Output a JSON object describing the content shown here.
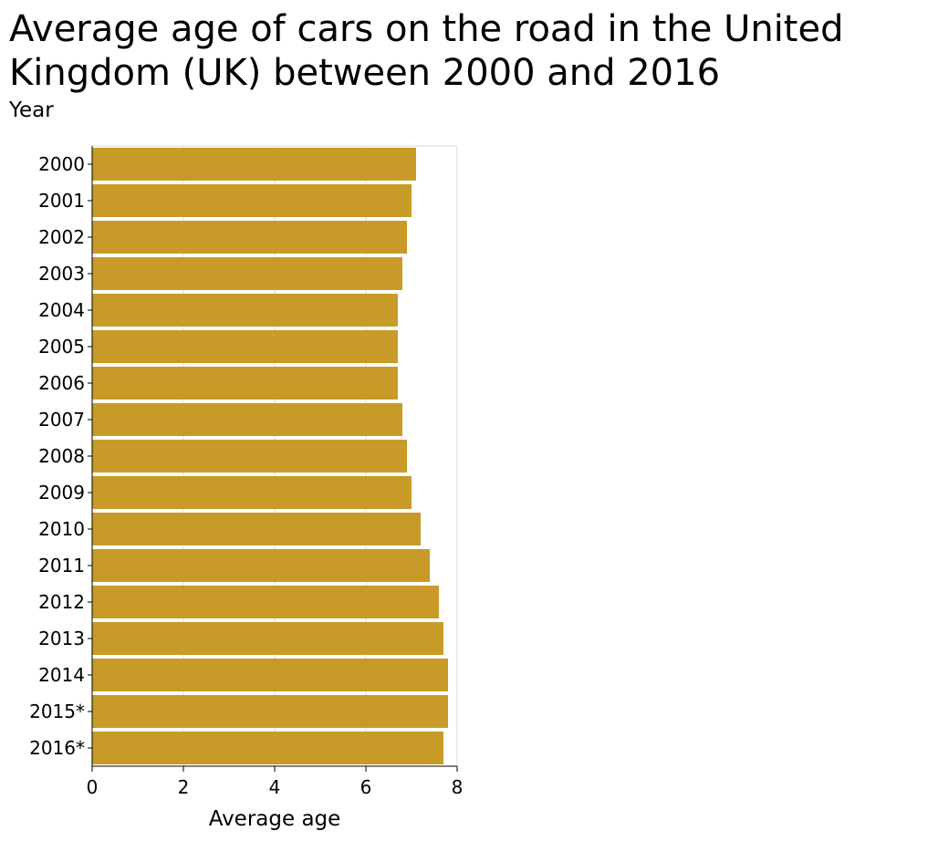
{
  "chart_data": {
    "type": "bar",
    "orientation": "horizontal",
    "title": "Average age of cars on the road in the United Kingdom (UK) between 2000 and 2016",
    "xlabel": "Average age",
    "ylabel": "Year",
    "categories": [
      "2000",
      "2001",
      "2002",
      "2003",
      "2004",
      "2005",
      "2006",
      "2007",
      "2008",
      "2009",
      "2010",
      "2011",
      "2012",
      "2013",
      "2014",
      "2015*",
      "2016*"
    ],
    "values": [
      7.1,
      7.0,
      6.9,
      6.8,
      6.7,
      6.7,
      6.7,
      6.8,
      6.9,
      7.0,
      7.2,
      7.4,
      7.6,
      7.7,
      7.8,
      7.8,
      7.7
    ],
    "xlim": [
      0,
      8
    ],
    "xticks": [
      0,
      2,
      4,
      6,
      8
    ],
    "grid": true,
    "bar_color": "#c89b29",
    "grid_color": "#d9d9d9"
  }
}
